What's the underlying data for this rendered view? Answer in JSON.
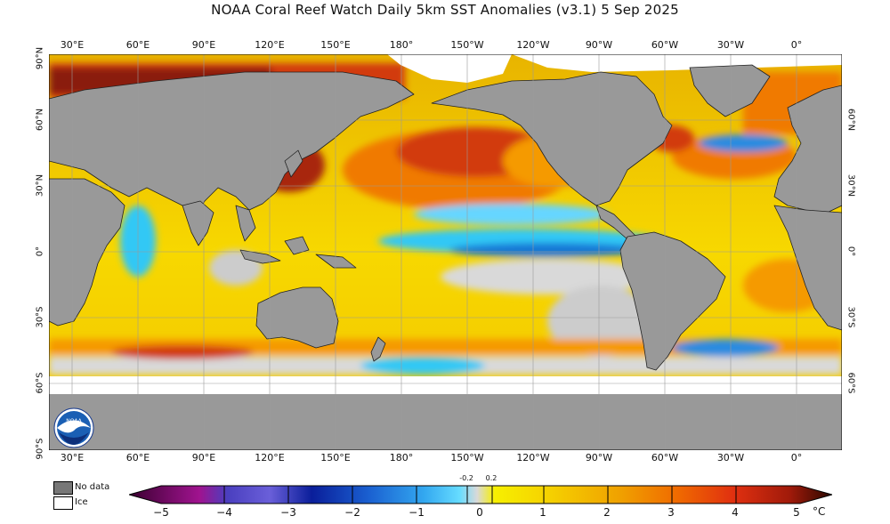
{
  "title": "NOAA Coral Reef Watch Daily 5km SST Anomalies  (v3.1)   5 Sep 2025",
  "lon_labels": [
    "30°E",
    "60°E",
    "90°E",
    "120°E",
    "150°E",
    "180°",
    "150°W",
    "120°W",
    "90°W",
    "60°W",
    "30°W",
    "0°"
  ],
  "lat_labels_left": [
    "90°N",
    "60°N",
    "30°N",
    "0°",
    "30°S",
    "60°S",
    "90°S"
  ],
  "lat_labels_right": [
    "60°N",
    "30°N",
    "0°",
    "30°S",
    "60°S"
  ],
  "legend": {
    "no_data_label": "No data",
    "no_data_color": "#777777",
    "ice_label": "Ice",
    "ice_color": "#ffffff"
  },
  "colorbar": {
    "ticks": [
      "−5",
      "−4",
      "−3",
      "−2",
      "−1",
      "0",
      "1",
      "2",
      "3",
      "4",
      "5"
    ],
    "small_ticks": [
      "-0.2",
      "0.2"
    ],
    "unit": "°C"
  },
  "colors": {
    "land": "#999999",
    "ice": "#ffffff"
  },
  "logo_text": "NOAA"
}
